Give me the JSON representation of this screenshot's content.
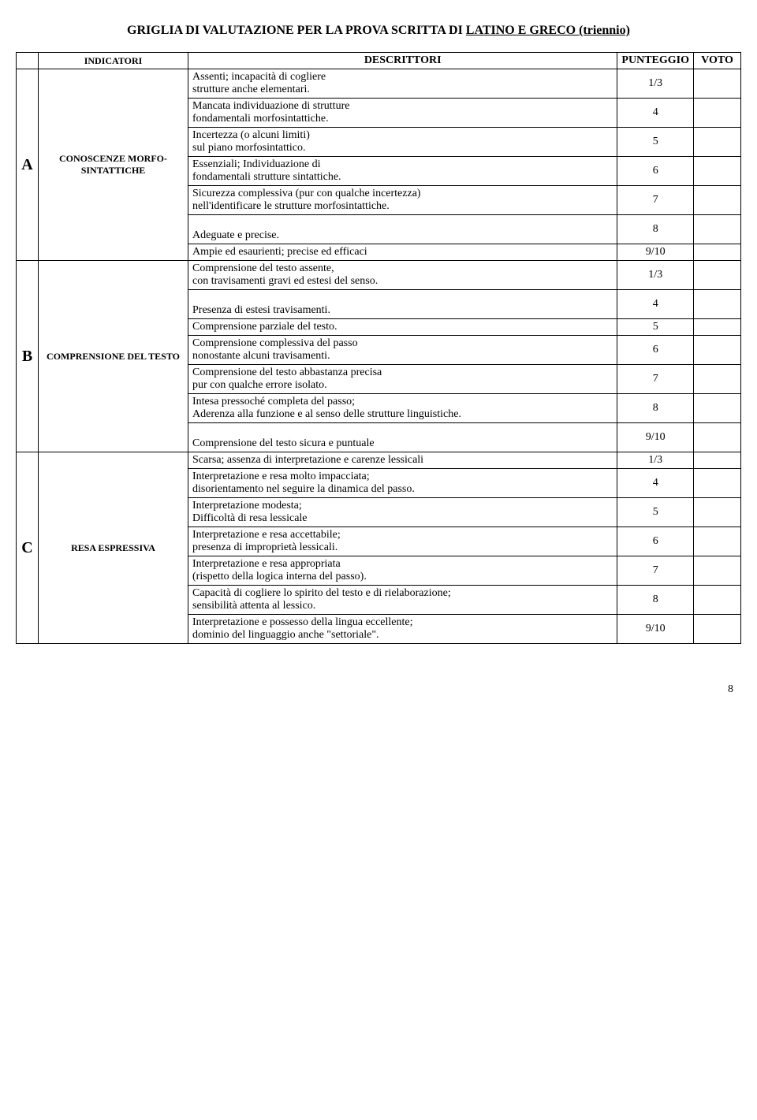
{
  "title_prefix": "GRIGLIA DI VALUTAZIONE PER LA PROVA SCRITTA DI ",
  "title_ul": "LATINO E GRECO (triennio)",
  "headers": {
    "indicatori": "INDICATORI",
    "descrittori": "DESCRITTORI",
    "punteggio": "PUNTEGGIO",
    "voto": "VOTO"
  },
  "sections": [
    {
      "id": "A",
      "indicatore": "CONOSCENZE MORFO-SINTATTICHE",
      "rows": [
        {
          "desc": "Assenti; incapacità di cogliere\n strutture anche elementari.",
          "score": "1/3"
        },
        {
          "desc": "Mancata individuazione di strutture\n fondamentali morfosintattiche.",
          "score": "4"
        },
        {
          "desc": "Incertezza (o alcuni limiti)\n sul piano morfosintattico.",
          "score": "5"
        },
        {
          "desc": "Essenziali; Individuazione di\n fondamentali strutture sintattiche.",
          "score": "6"
        },
        {
          "desc": "Sicurezza complessiva (pur con qualche incertezza)\n nell'identificare le strutture morfosintattiche.",
          "score": "7"
        },
        {
          "desc": "\nAdeguate e precise.",
          "score": "8"
        },
        {
          "desc": "Ampie ed esaurienti; precise ed efficaci\n",
          "score": "9/10"
        }
      ]
    },
    {
      "id": "B",
      "indicatore": "COMPRENSIONE DEL TESTO",
      "rows": [
        {
          "desc": "Comprensione del testo assente,\n con travisamenti gravi ed estesi del senso.",
          "score": "1/3"
        },
        {
          "desc": "\nPresenza di estesi travisamenti.",
          "score": "4"
        },
        {
          "desc": "Comprensione parziale del testo.\n",
          "score": "5"
        },
        {
          "desc": "Comprensione complessiva del passo\n nonostante alcuni travisamenti.",
          "score": "6"
        },
        {
          "desc": "Comprensione del testo abbastanza precisa\n pur con qualche errore isolato.",
          "score": "7"
        },
        {
          "desc": "Intesa pressoché completa del passo;\nAderenza alla funzione e al senso delle strutture linguistiche.",
          "score": "8"
        },
        {
          "desc": "\nComprensione del testo sicura e puntuale",
          "score": "9/10"
        }
      ]
    },
    {
      "id": "C",
      "indicatore": "RESA ESPRESSIVA",
      "rows": [
        {
          "desc": "Scarsa; assenza di interpretazione e carenze lessicali\n",
          "score": "1/3"
        },
        {
          "desc": "Interpretazione e resa molto impacciata;\n disorientamento nel seguire la dinamica del passo.",
          "score": "4"
        },
        {
          "desc": "Interpretazione modesta;\nDifficoltà di resa lessicale",
          "score": "5"
        },
        {
          "desc": "Interpretazione e resa  accettabile;\n presenza di improprietà lessicali.",
          "score": "6"
        },
        {
          "desc": "Interpretazione e resa appropriata\n (rispetto della logica interna del passo).",
          "score": "7"
        },
        {
          "desc": "Capacità di cogliere lo spirito del testo e di rielaborazione;\nsensibilità attenta al lessico.",
          "score": "8"
        },
        {
          "desc": "Interpretazione e possesso della lingua eccellente;\ndominio del linguaggio anche \"settoriale\".",
          "score": "9/10"
        }
      ]
    }
  ],
  "page_number": "8"
}
